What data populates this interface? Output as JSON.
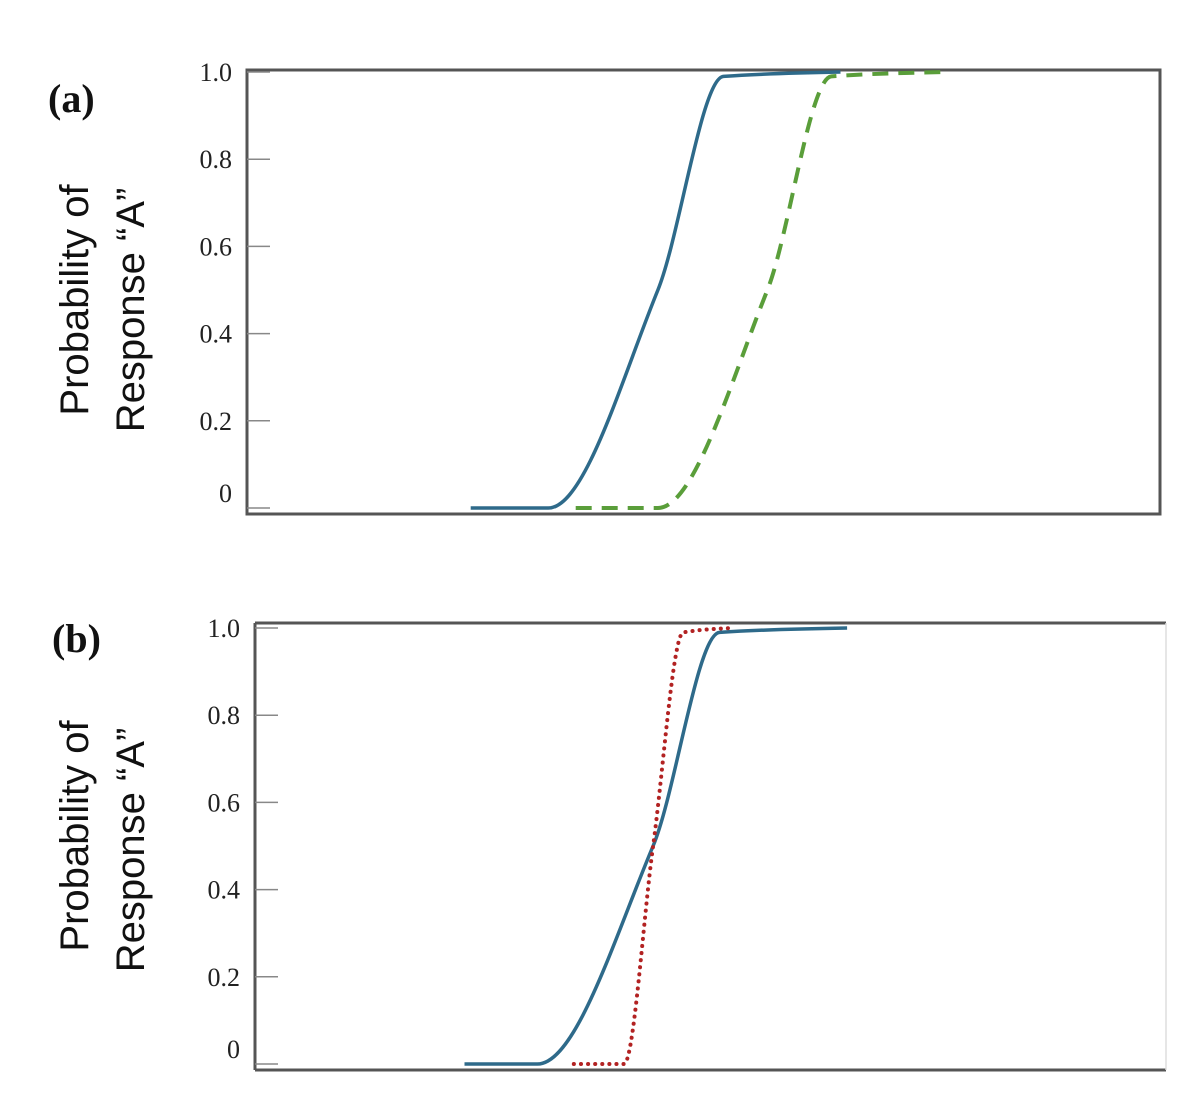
{
  "chart_data": [
    {
      "type": "line",
      "panel_label": "(a)",
      "ylabel_line1": "Probability of",
      "ylabel_line2": "Response “A”",
      "yticks": [
        "1.0",
        "0.8",
        "0.6",
        "0.4",
        "0.2",
        "0"
      ],
      "ylim": [
        0,
        1
      ],
      "xlim": [
        0,
        100
      ],
      "grid": false,
      "series": [
        {
          "style": "solid",
          "color": "#2e6a8a",
          "x": [
            24.5,
            33.0,
            45.0,
            52.2,
            65.0
          ],
          "y": [
            0,
            0.0,
            0.5,
            0.99,
            1.0
          ]
        },
        {
          "style": "dashed",
          "color": "#5a9e3a",
          "x": [
            36.0,
            45.0,
            57.0,
            64.0,
            77.0
          ],
          "y": [
            0,
            0.0,
            0.5,
            0.99,
            1.0
          ]
        }
      ]
    },
    {
      "type": "line",
      "panel_label": "(b)",
      "ylabel_line1": "Probability of",
      "ylabel_line2": "Response “A”",
      "yticks": [
        "1.0",
        "0.8",
        "0.6",
        "0.4",
        "0.2",
        "0"
      ],
      "ylim": [
        0,
        1
      ],
      "xlim": [
        0,
        100
      ],
      "grid": false,
      "series": [
        {
          "style": "solid",
          "color": "#2e6a8a",
          "x": [
            23.0,
            31.0,
            43.7,
            51.0,
            65.0
          ],
          "y": [
            0,
            0.0,
            0.5,
            0.99,
            1.0
          ]
        },
        {
          "style": "dotted",
          "color": "#b22222",
          "x": [
            35.0,
            40.5,
            43.7,
            47.0,
            52.5
          ],
          "y": [
            0,
            0.0,
            0.5,
            0.99,
            1.0
          ]
        }
      ]
    }
  ]
}
